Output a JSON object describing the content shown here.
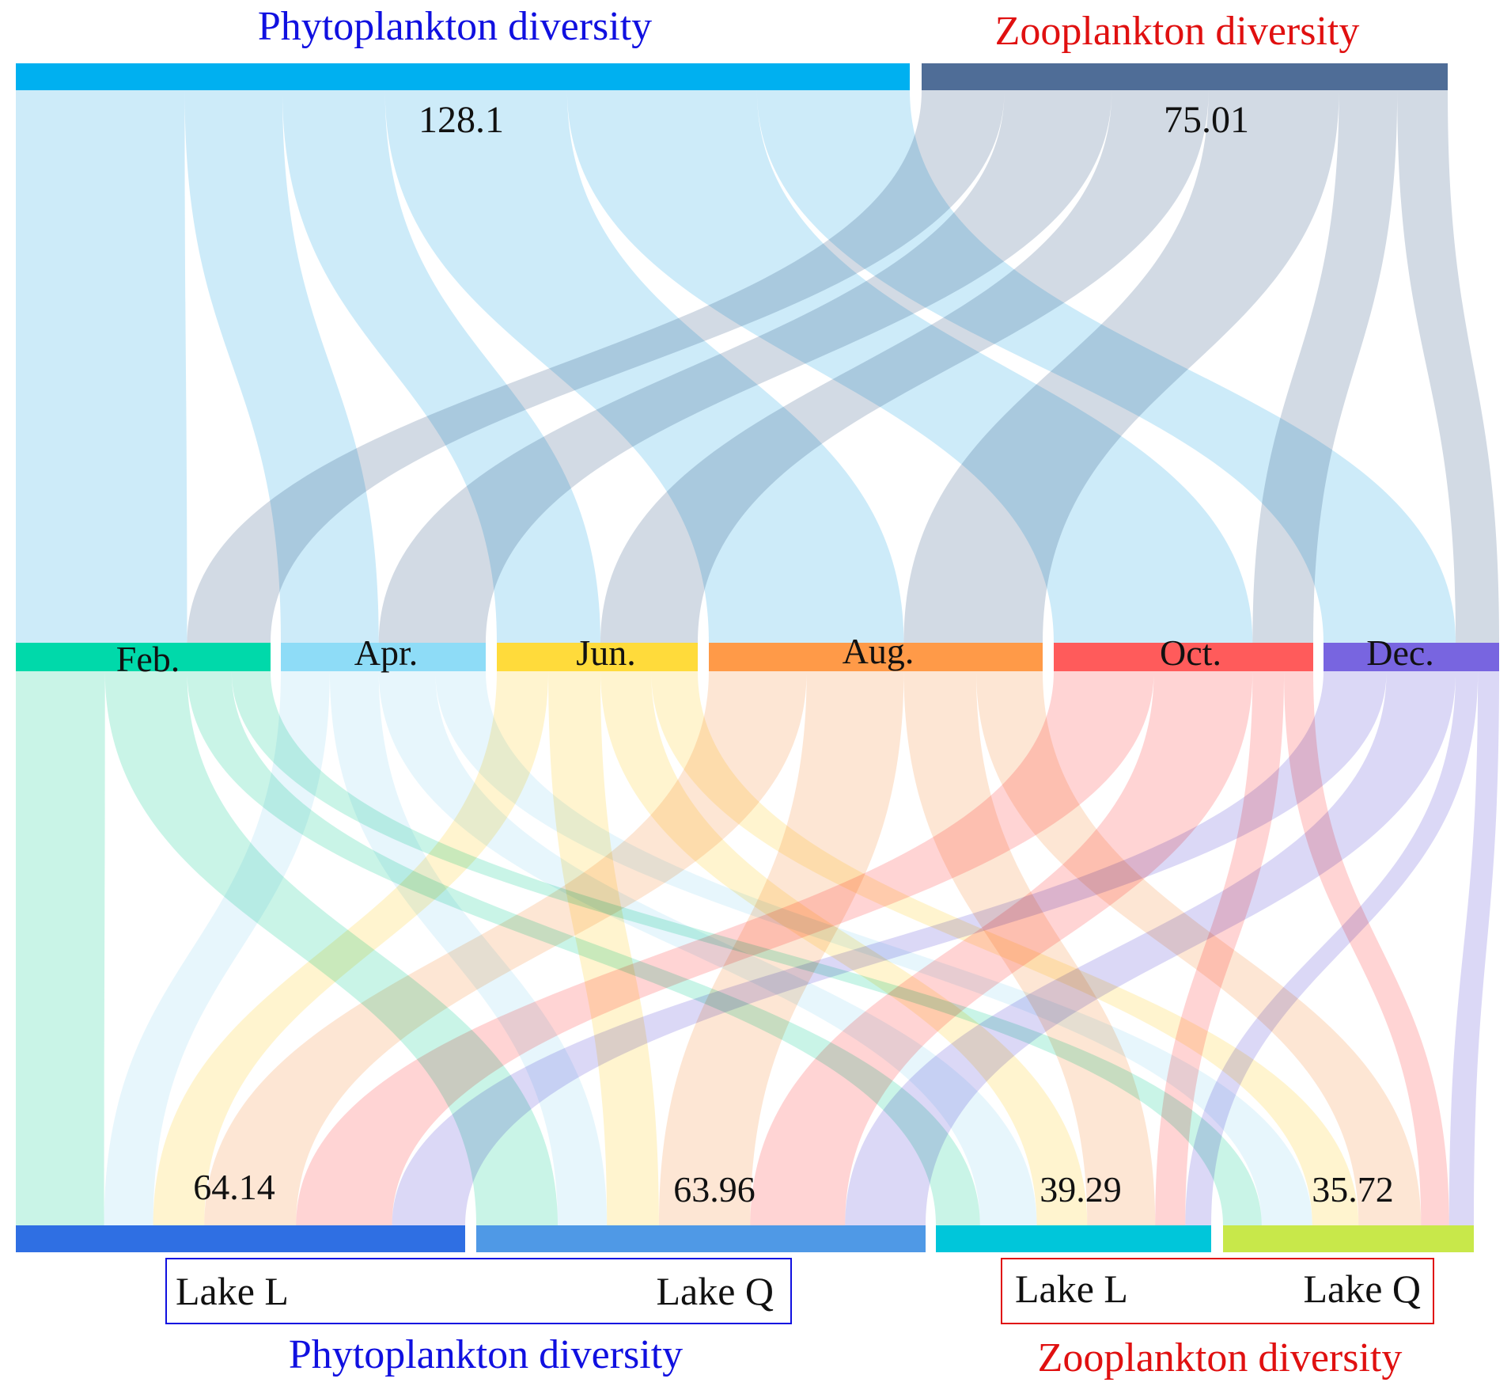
{
  "chart_data": {
    "type": "sankey",
    "title": "",
    "top_headers": [
      {
        "text": "Phytoplankton diversity",
        "color": "#1010e0"
      },
      {
        "text": "Zooplankton diversity",
        "color": "#e01010"
      }
    ],
    "source_nodes": [
      {
        "id": "phyto",
        "value": 128.1,
        "value_label": "128.1",
        "color": "#00b0f0",
        "flow_color": "#c4e7f8"
      },
      {
        "id": "zoo",
        "value": 75.01,
        "value_label": "75.01",
        "color": "#4f6d97",
        "flow_color": "#cad4df"
      }
    ],
    "month_nodes": [
      {
        "id": "feb",
        "label": "Feb.",
        "color": "#00d9aa",
        "flow_color": "#c0f2e3"
      },
      {
        "id": "apr",
        "label": "Apr.",
        "color": "#8edcf7",
        "flow_color": "#e3f5fc"
      },
      {
        "id": "jun",
        "label": "Jun.",
        "color": "#ffdb3b",
        "flow_color": "#fff2c7"
      },
      {
        "id": "aug",
        "label": "Aug.",
        "color": "#ff9a48",
        "flow_color": "#fde2cc"
      },
      {
        "id": "oct",
        "label": "Oct.",
        "color": "#ff5b5b",
        "flow_color": "#ffcccc"
      },
      {
        "id": "dec",
        "label": "Dec.",
        "color": "#7865e0",
        "flow_color": "#d5d1f5"
      }
    ],
    "lake_nodes": [
      {
        "id": "phyto_L",
        "value_label": "64.14",
        "value": 64.14,
        "color": "#2f6fe3"
      },
      {
        "id": "phyto_Q",
        "value_label": "63.96",
        "value": 63.96,
        "color": "#4f99e6"
      },
      {
        "id": "zoo_L",
        "value_label": "39.29",
        "value": 39.29,
        "color": "#00c6da"
      },
      {
        "id": "zoo_Q",
        "value_label": "35.72",
        "value": 35.72,
        "color": "#c8e84a"
      }
    ],
    "source_to_month": [
      {
        "source": "phyto",
        "target": "feb",
        "value": 24.2
      },
      {
        "source": "phyto",
        "target": "apr",
        "value": 14.0
      },
      {
        "source": "phyto",
        "target": "jun",
        "value": 14.7
      },
      {
        "source": "phyto",
        "target": "aug",
        "value": 26.1
      },
      {
        "source": "phyto",
        "target": "oct",
        "value": 27.2
      },
      {
        "source": "phyto",
        "target": "dec",
        "value": 21.9
      },
      {
        "source": "zoo",
        "target": "feb",
        "value": 11.8
      },
      {
        "source": "zoo",
        "target": "apr",
        "value": 15.3
      },
      {
        "source": "zoo",
        "target": "jun",
        "value": 13.8
      },
      {
        "source": "zoo",
        "target": "aug",
        "value": 18.6
      },
      {
        "source": "zoo",
        "target": "oct",
        "value": 8.3
      },
      {
        "source": "zoo",
        "target": "dec",
        "value": 7.2
      }
    ],
    "month_to_lake": [
      {
        "source": "feb",
        "target": "phyto_L",
        "value": 12.6
      },
      {
        "source": "feb",
        "target": "phyto_Q",
        "value": 11.6
      },
      {
        "source": "feb",
        "target": "zoo_L",
        "value": 6.3
      },
      {
        "source": "feb",
        "target": "zoo_Q",
        "value": 5.5
      },
      {
        "source": "apr",
        "target": "phyto_L",
        "value": 7.0
      },
      {
        "source": "apr",
        "target": "phyto_Q",
        "value": 7.0
      },
      {
        "source": "apr",
        "target": "zoo_L",
        "value": 8.1
      },
      {
        "source": "apr",
        "target": "zoo_Q",
        "value": 7.2
      },
      {
        "source": "jun",
        "target": "phyto_L",
        "value": 7.3
      },
      {
        "source": "jun",
        "target": "phyto_Q",
        "value": 7.4
      },
      {
        "source": "jun",
        "target": "zoo_L",
        "value": 7.2
      },
      {
        "source": "jun",
        "target": "zoo_Q",
        "value": 6.6
      },
      {
        "source": "aug",
        "target": "phyto_L",
        "value": 13.1
      },
      {
        "source": "aug",
        "target": "phyto_Q",
        "value": 13.0
      },
      {
        "source": "aug",
        "target": "zoo_L",
        "value": 9.7
      },
      {
        "source": "aug",
        "target": "zoo_Q",
        "value": 8.9
      },
      {
        "source": "oct",
        "target": "phyto_L",
        "value": 13.7
      },
      {
        "source": "oct",
        "target": "phyto_Q",
        "value": 13.5
      },
      {
        "source": "oct",
        "target": "zoo_L",
        "value": 4.3
      },
      {
        "source": "oct",
        "target": "zoo_Q",
        "value": 4.0
      },
      {
        "source": "dec",
        "target": "phyto_L",
        "value": 10.44
      },
      {
        "source": "dec",
        "target": "phyto_Q",
        "value": 11.46
      },
      {
        "source": "dec",
        "target": "zoo_L",
        "value": 3.69
      },
      {
        "source": "dec",
        "target": "zoo_Q",
        "value": 3.52
      }
    ],
    "legend_boxes": [
      {
        "left_label": "Lake L",
        "right_label": "Lake Q",
        "caption": "Phytoplankton diversity",
        "color": "#1010e0"
      },
      {
        "left_label": "Lake L",
        "right_label": "Lake Q",
        "caption": "Zooplankton diversity",
        "color": "#e01010"
      }
    ]
  }
}
